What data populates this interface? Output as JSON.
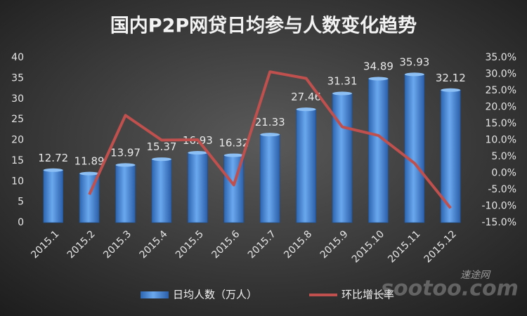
{
  "chart_data": {
    "type": "bar",
    "title": "国内P2P网贷日均参与人数变化趋势",
    "categories": [
      "2015.1",
      "2015.2",
      "2015.3",
      "2015.4",
      "2015.5",
      "2015.6",
      "2015.7",
      "2015.8",
      "2015.9",
      "2015.10",
      "2015.11",
      "2015.12"
    ],
    "series": [
      {
        "name": "日均人数（万人）",
        "type": "bar",
        "color": "#4a8fd8",
        "axis": "y",
        "values": [
          12.72,
          11.89,
          13.97,
          15.37,
          16.93,
          16.32,
          21.33,
          27.46,
          31.31,
          34.89,
          35.93,
          32.12
        ]
      },
      {
        "name": "环比增长率",
        "type": "line",
        "color": "#c0504d",
        "axis": "y2",
        "values": [
          null,
          -6.5,
          17.5,
          10.0,
          10.1,
          -3.6,
          30.7,
          28.7,
          14.0,
          11.4,
          3.0,
          -10.6
        ]
      }
    ],
    "ylim": [
      0,
      40
    ],
    "yticks": [
      0,
      5,
      10,
      15,
      20,
      25,
      30,
      35,
      40
    ],
    "y2lim": [
      -15,
      35
    ],
    "y2ticks": [
      {
        "value": 35,
        "label": "35.0%"
      },
      {
        "value": 30,
        "label": "30.0%"
      },
      {
        "value": 25,
        "label": "25.0%"
      },
      {
        "value": 20,
        "label": "20.0%"
      },
      {
        "value": 15,
        "label": "15.0%"
      },
      {
        "value": 10,
        "label": "10.0%"
      },
      {
        "value": 5,
        "label": "5.0%"
      },
      {
        "value": 0,
        "label": "0.0%"
      },
      {
        "value": -5,
        "label": "-5.0%"
      },
      {
        "value": -10,
        "label": "-10.0%"
      },
      {
        "value": -15,
        "label": "-15.0%"
      }
    ],
    "grid": false,
    "legend": "bottom",
    "watermark": [
      "速途网",
      "sootoo.com"
    ]
  }
}
